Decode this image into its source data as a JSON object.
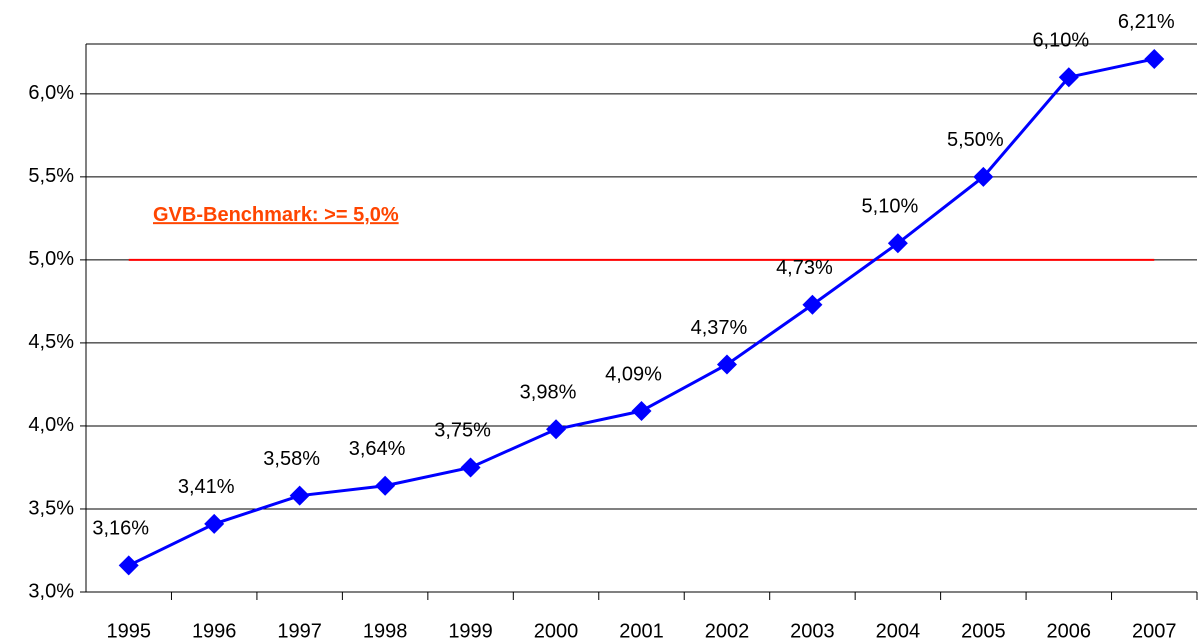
{
  "chart_data": {
    "type": "line",
    "categories": [
      "1995",
      "1996",
      "1997",
      "1998",
      "1999",
      "2000",
      "2001",
      "2002",
      "2003",
      "2004",
      "2005",
      "2006",
      "2007"
    ],
    "series": [
      {
        "color": "#0000ff",
        "values": [
          3.16,
          3.41,
          3.58,
          3.64,
          3.75,
          3.98,
          4.09,
          4.37,
          4.73,
          5.1,
          5.5,
          6.1,
          6.21
        ],
        "value_labels": [
          "3,16%",
          "3,41%",
          "3,58%",
          "3,64%",
          "3,75%",
          "3,98%",
          "4,09%",
          "4,37%",
          "4,73%",
          "5,10%",
          "5,50%",
          "6,10%",
          "6,21%"
        ]
      }
    ],
    "ylim": [
      3.0,
      6.3
    ],
    "yticks": [
      {
        "value": 3.0,
        "label": "3,0%"
      },
      {
        "value": 3.5,
        "label": "3,5%"
      },
      {
        "value": 4.0,
        "label": "4,0%"
      },
      {
        "value": 4.5,
        "label": "4,5%"
      },
      {
        "value": 5.0,
        "label": "5,0%"
      },
      {
        "value": 5.5,
        "label": "5,5%"
      },
      {
        "value": 6.0,
        "label": "6,0%"
      }
    ],
    "grid": true,
    "benchmark": {
      "value": 5.0,
      "label": "GVB-Benchmark: >= 5,0%",
      "color": "#ff0000",
      "label_color": "#ff4500"
    }
  }
}
